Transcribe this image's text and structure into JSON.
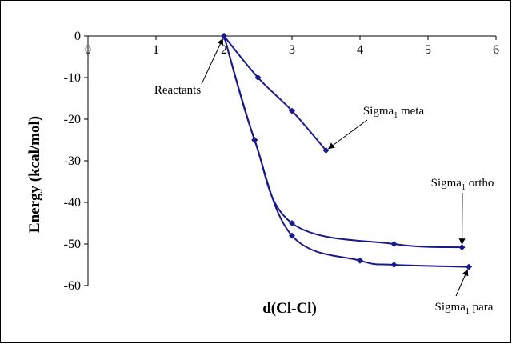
{
  "chart_data": {
    "type": "line",
    "xlabel": "d(Cl-Cl)",
    "ylabel": "Energy (kcal/mol)",
    "xlim": [
      0,
      6
    ],
    "ylim": [
      -60,
      0
    ],
    "x_ticks": [
      "0",
      "1",
      "2",
      "3",
      "4",
      "5",
      "6"
    ],
    "y_ticks": [
      "0",
      "-10",
      "-20",
      "-30",
      "-40",
      "-50",
      "-60"
    ],
    "grid": false,
    "line_color": "#1a1a8c",
    "series": [
      {
        "id": "meta",
        "x": [
          2.0,
          2.5,
          3.0,
          3.5
        ],
        "y": [
          0,
          -10,
          -18,
          -27.5
        ]
      },
      {
        "id": "ortho",
        "x": [
          2.0,
          2.45,
          3.0,
          4.5,
          5.5
        ],
        "y": [
          0,
          -25,
          -45,
          -50,
          -50.8
        ]
      },
      {
        "id": "para",
        "x": [
          2.0,
          2.45,
          3.0,
          4.0,
          4.5,
          5.6
        ],
        "y": [
          0,
          -25,
          -48,
          -54,
          -55,
          -55.5
        ]
      }
    ],
    "annotations": [
      {
        "id": "reactants",
        "text": "Reactants",
        "sub": "",
        "rest": "",
        "point": [
          2.0,
          0
        ]
      },
      {
        "id": "meta",
        "text": "Sigma",
        "sub": "1",
        "rest": " meta",
        "point": [
          3.5,
          -27.5
        ]
      },
      {
        "id": "ortho",
        "text": "Sigma",
        "sub": "1",
        "rest": " ortho",
        "point": [
          5.5,
          -50.8
        ]
      },
      {
        "id": "para",
        "text": "Sigma",
        "sub": "1",
        "rest": " para",
        "point": [
          5.6,
          -55.5
        ]
      }
    ]
  }
}
